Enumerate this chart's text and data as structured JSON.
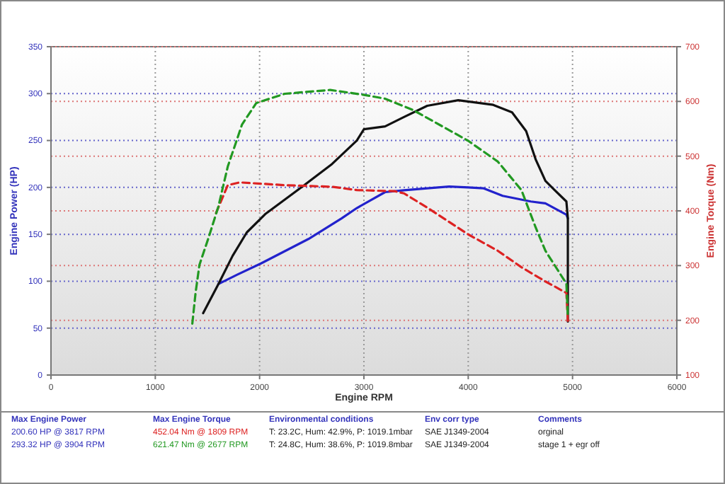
{
  "chart_data": {
    "type": "line",
    "xlabel": "Engine RPM",
    "ylabel": "Engine Power (HP)",
    "y2label": "Engine Torque (Nm)",
    "xlim": [
      0,
      6000
    ],
    "xticks": [
      0,
      1000,
      2000,
      3000,
      4000,
      5000,
      6000
    ],
    "ylim": [
      0,
      350
    ],
    "yticks": [
      0,
      50,
      100,
      150,
      200,
      250,
      300,
      350
    ],
    "y2lim": [
      100,
      700
    ],
    "y2ticks": [
      100,
      200,
      300,
      400,
      500,
      600,
      700
    ],
    "grid": true,
    "line_style": "solid",
    "series": [
      {
        "color": "#2222cc",
        "x": [
          1605,
          1786,
          2014,
          2468,
          2786,
          2932,
          3203,
          3384,
          3607,
          3817,
          4000,
          4149,
          4330,
          4600,
          4740,
          4941,
          4955
        ],
        "values": [
          97,
          107,
          119,
          145,
          167,
          178,
          195,
          197,
          199,
          201,
          200,
          199,
          191,
          185,
          183,
          171,
          167
        ]
      },
      {
        "color": "#111111",
        "x": [
          1459,
          1605,
          1741,
          1877,
          2059,
          2423,
          2695,
          2932,
          3000,
          3203,
          3384,
          3607,
          3904,
          4239,
          4420,
          4555,
          4646,
          4740,
          4830,
          4941,
          4955,
          4955
        ],
        "values": [
          66,
          97,
          127,
          152,
          172,
          202,
          225,
          250,
          262,
          265,
          275,
          287,
          293,
          288,
          280,
          260,
          230,
          207,
          197,
          185,
          167,
          57
        ]
      },
      {
        "color": "#dd2222",
        "axis": "y2",
        "line_style": "dashed",
        "x": [
          1582,
          1695,
          1809,
          2241,
          2695,
          2932,
          3293,
          3384,
          3607,
          4000,
          4284,
          4510,
          4740,
          4941,
          4955
        ],
        "values": [
          396,
          447,
          452,
          447,
          444,
          438,
          436,
          432,
          406,
          357,
          327,
          297,
          271,
          250,
          199
        ]
      },
      {
        "color": "#229922",
        "axis": "y2",
        "line_style": "dashed",
        "x": [
          1355,
          1386,
          1423,
          1514,
          1605,
          1695,
          1832,
          1968,
          2241,
          2677,
          3000,
          3203,
          3474,
          4000,
          4284,
          4510,
          4646,
          4740,
          4941,
          4955
        ],
        "values": [
          194,
          250,
          301,
          353,
          408,
          481,
          558,
          597,
          614,
          621,
          612,
          605,
          584,
          528,
          490,
          438,
          370,
          327,
          267,
          207
        ]
      }
    ],
    "annotations": [
      "Max Engine Power",
      "Max Engine Torque",
      "Environmental conditions",
      "Env corr type",
      "Comments",
      "200.60 HP @ 3817 RPM",
      "452.04 Nm @ 1809 RPM",
      "T: 23.2C, Hum: 42.9%, P: 1019.1mbar",
      "SAE J1349-2004",
      "orginal",
      "293.32 HP @ 3904 RPM",
      "621.47 Nm @ 2677 RPM",
      "T: 24.8C, Hum: 38.6%, P: 1019.8mbar",
      "SAE J1349-2004",
      "stage 1 + egr off"
    ]
  }
}
